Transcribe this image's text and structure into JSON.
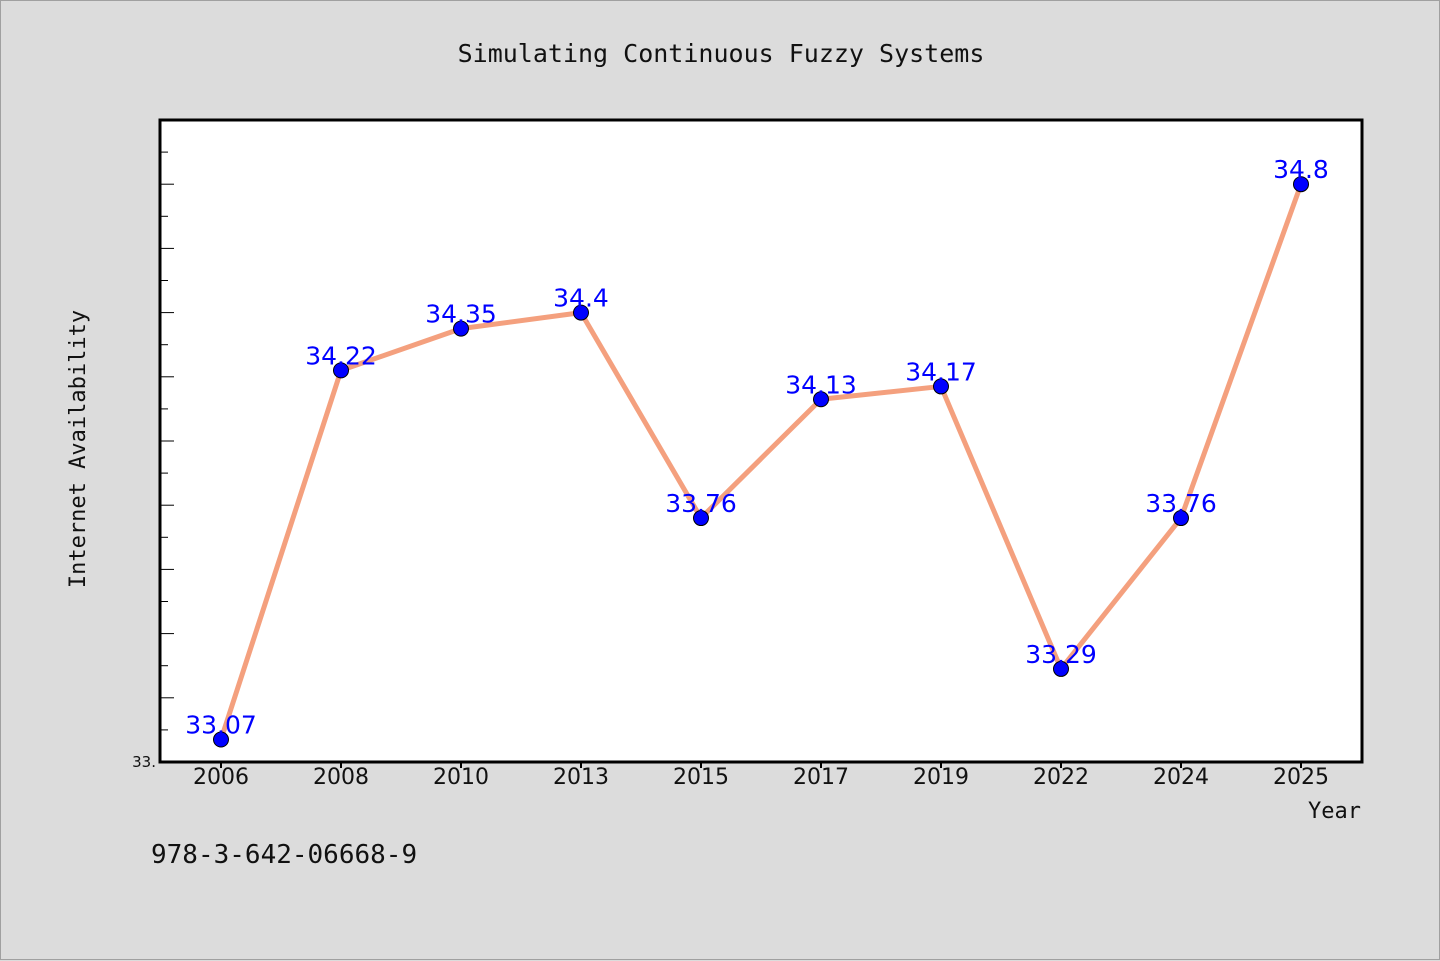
{
  "chart_data": {
    "type": "line",
    "title": "Simulating Continuous Fuzzy Systems",
    "xlabel": "Year",
    "ylabel": "Internet Availability",
    "categories": [
      "2006",
      "2008",
      "2010",
      "2013",
      "2015",
      "2017",
      "2019",
      "2022",
      "2024",
      "2025"
    ],
    "series": [
      {
        "values": [
          33.07,
          34.22,
          34.35,
          34.4,
          33.76,
          34.13,
          34.17,
          33.29,
          33.76,
          34.8
        ],
        "labels": [
          "33.07",
          "34.22",
          "34.35",
          "34.4",
          "33.76",
          "34.13",
          "34.17",
          "33.29",
          "33.76",
          "34.8"
        ]
      }
    ],
    "ylim": [
      33.0,
      35.0
    ],
    "ytick_label": "33.",
    "grid": false,
    "line_color": "#f4a07e",
    "marker_color": "#0000ff",
    "label_color": "#0000ff"
  },
  "footer": {
    "isbn": "978-3-642-06668-9"
  }
}
